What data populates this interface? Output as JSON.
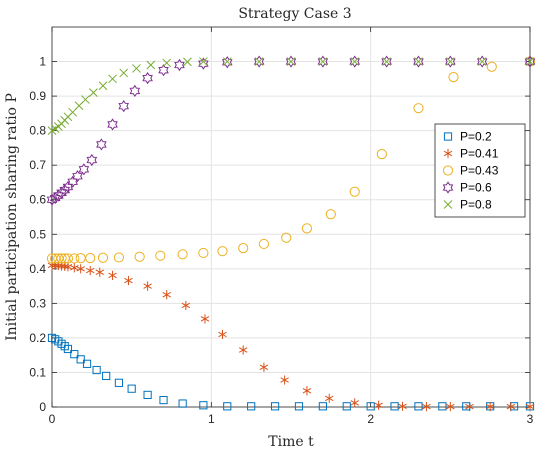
{
  "chart_data": {
    "type": "scatter",
    "title": "Strategy Case 3",
    "xlabel": "Time t",
    "ylabel": "Initial participation sharing ratio P",
    "xlim": [
      0,
      3
    ],
    "ylim": [
      0,
      1.1
    ],
    "xticks": [
      "0",
      "1",
      "2",
      "3"
    ],
    "yticks": [
      "0",
      "0.1",
      "0.2",
      "0.3",
      "0.4",
      "0.5",
      "0.6",
      "0.7",
      "0.8",
      "0.9",
      "1"
    ],
    "grid": true,
    "legend_position": "right",
    "series": [
      {
        "name": "P=0.2",
        "color": "#0072BD",
        "marker": "square",
        "points": [
          [
            0,
            0.2
          ],
          [
            0.02,
            0.196
          ],
          [
            0.04,
            0.19
          ],
          [
            0.06,
            0.183
          ],
          [
            0.08,
            0.176
          ],
          [
            0.1,
            0.168
          ],
          [
            0.14,
            0.153
          ],
          [
            0.18,
            0.138
          ],
          [
            0.22,
            0.125
          ],
          [
            0.28,
            0.107
          ],
          [
            0.34,
            0.09
          ],
          [
            0.42,
            0.07
          ],
          [
            0.5,
            0.053
          ],
          [
            0.6,
            0.035
          ],
          [
            0.7,
            0.02
          ],
          [
            0.82,
            0.01
          ],
          [
            0.95,
            0.005
          ],
          [
            1.1,
            0.002
          ],
          [
            1.25,
            0.002
          ],
          [
            1.4,
            0.002
          ],
          [
            1.55,
            0.002
          ],
          [
            1.7,
            0.002
          ],
          [
            1.85,
            0.002
          ],
          [
            2.0,
            0.002
          ],
          [
            2.15,
            0.002
          ],
          [
            2.3,
            0.002
          ],
          [
            2.45,
            0.002
          ],
          [
            2.6,
            0.002
          ],
          [
            2.75,
            0.002
          ],
          [
            2.9,
            0.002
          ],
          [
            3.0,
            0.002
          ]
        ]
      },
      {
        "name": "P=0.41",
        "color": "#D95319",
        "marker": "asterisk",
        "points": [
          [
            0,
            0.41
          ],
          [
            0.02,
            0.41
          ],
          [
            0.04,
            0.409
          ],
          [
            0.06,
            0.408
          ],
          [
            0.08,
            0.407
          ],
          [
            0.1,
            0.406
          ],
          [
            0.14,
            0.403
          ],
          [
            0.18,
            0.4
          ],
          [
            0.24,
            0.395
          ],
          [
            0.3,
            0.39
          ],
          [
            0.38,
            0.381
          ],
          [
            0.48,
            0.366
          ],
          [
            0.6,
            0.35
          ],
          [
            0.72,
            0.325
          ],
          [
            0.84,
            0.294
          ],
          [
            0.96,
            0.255
          ],
          [
            1.07,
            0.21
          ],
          [
            1.2,
            0.165
          ],
          [
            1.33,
            0.115
          ],
          [
            1.46,
            0.078
          ],
          [
            1.6,
            0.047
          ],
          [
            1.74,
            0.025
          ],
          [
            1.9,
            0.012
          ],
          [
            2.05,
            0.005
          ],
          [
            2.2,
            0.002
          ],
          [
            2.35,
            0.001
          ],
          [
            2.5,
            0.001
          ],
          [
            2.62,
            0.001
          ],
          [
            2.75,
            0.001
          ],
          [
            2.88,
            0.001
          ],
          [
            3.0,
            0.001
          ]
        ]
      },
      {
        "name": "P=0.43",
        "color": "#EDB120",
        "marker": "circle",
        "points": [
          [
            0,
            0.43
          ],
          [
            0.02,
            0.43
          ],
          [
            0.04,
            0.43
          ],
          [
            0.06,
            0.43
          ],
          [
            0.08,
            0.43
          ],
          [
            0.1,
            0.43
          ],
          [
            0.14,
            0.43
          ],
          [
            0.18,
            0.431
          ],
          [
            0.24,
            0.431
          ],
          [
            0.32,
            0.432
          ],
          [
            0.42,
            0.433
          ],
          [
            0.55,
            0.435
          ],
          [
            0.68,
            0.438
          ],
          [
            0.82,
            0.442
          ],
          [
            0.95,
            0.446
          ],
          [
            1.07,
            0.451
          ],
          [
            1.2,
            0.46
          ],
          [
            1.33,
            0.472
          ],
          [
            1.47,
            0.49
          ],
          [
            1.6,
            0.517
          ],
          [
            1.75,
            0.558
          ],
          [
            1.9,
            0.623
          ],
          [
            2.07,
            0.732
          ],
          [
            2.3,
            0.865
          ],
          [
            2.52,
            0.955
          ],
          [
            2.76,
            0.985
          ],
          [
            3.0,
            1.0
          ]
        ]
      },
      {
        "name": "P=0.6",
        "color": "#7E2F8E",
        "marker": "hexagram",
        "points": [
          [
            0,
            0.6
          ],
          [
            0.02,
            0.605
          ],
          [
            0.04,
            0.612
          ],
          [
            0.06,
            0.62
          ],
          [
            0.08,
            0.628
          ],
          [
            0.1,
            0.637
          ],
          [
            0.13,
            0.652
          ],
          [
            0.16,
            0.668
          ],
          [
            0.2,
            0.688
          ],
          [
            0.25,
            0.715
          ],
          [
            0.31,
            0.76
          ],
          [
            0.38,
            0.818
          ],
          [
            0.45,
            0.871
          ],
          [
            0.52,
            0.915
          ],
          [
            0.6,
            0.952
          ],
          [
            0.7,
            0.975
          ],
          [
            0.8,
            0.99
          ],
          [
            0.95,
            0.994
          ],
          [
            1.1,
            0.998
          ],
          [
            1.3,
            1.0
          ],
          [
            1.5,
            1.0
          ],
          [
            1.7,
            1.0
          ],
          [
            1.9,
            1.0
          ],
          [
            2.1,
            1.0
          ],
          [
            2.3,
            1.0
          ],
          [
            2.5,
            1.0
          ],
          [
            2.7,
            1.0
          ],
          [
            3.0,
            1.0
          ]
        ]
      },
      {
        "name": "P=0.8",
        "color": "#77AC30",
        "marker": "x",
        "points": [
          [
            0,
            0.8
          ],
          [
            0.02,
            0.806
          ],
          [
            0.04,
            0.812
          ],
          [
            0.06,
            0.82
          ],
          [
            0.08,
            0.83
          ],
          [
            0.1,
            0.84
          ],
          [
            0.13,
            0.853
          ],
          [
            0.17,
            0.872
          ],
          [
            0.21,
            0.89
          ],
          [
            0.26,
            0.91
          ],
          [
            0.32,
            0.93
          ],
          [
            0.38,
            0.95
          ],
          [
            0.45,
            0.967
          ],
          [
            0.53,
            0.98
          ],
          [
            0.62,
            0.99
          ],
          [
            0.72,
            0.996
          ],
          [
            0.85,
            0.999
          ],
          [
            0.95,
            1.0
          ],
          [
            1.1,
            1.0
          ],
          [
            1.3,
            1.0
          ],
          [
            1.5,
            1.0
          ],
          [
            1.7,
            1.0
          ],
          [
            1.9,
            1.0
          ],
          [
            2.1,
            1.0
          ],
          [
            2.3,
            1.0
          ],
          [
            2.5,
            1.0
          ],
          [
            2.7,
            1.0
          ],
          [
            3.0,
            1.0
          ]
        ]
      }
    ]
  }
}
